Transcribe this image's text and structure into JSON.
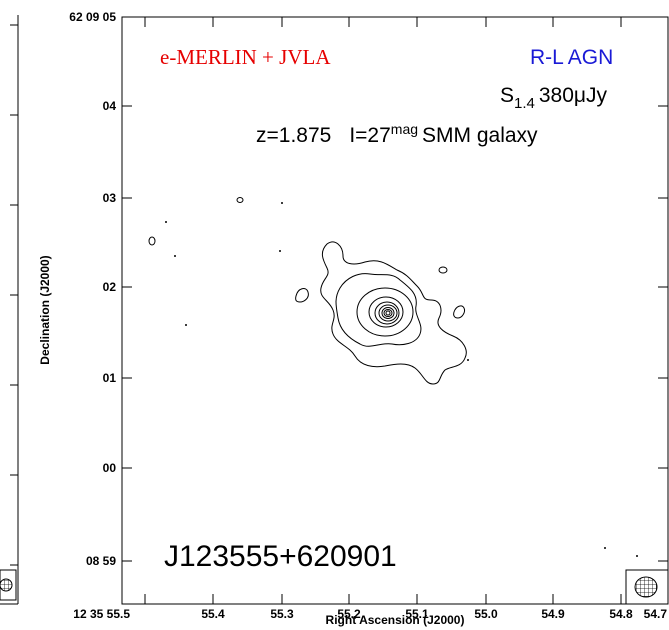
{
  "panel": {
    "title": "e-MERLIN + JVLA",
    "tag": "R-L AGN",
    "flux_symbol": "S",
    "flux_sub": "1.4",
    "flux_value": "380μJy",
    "redshift": "z=1.875",
    "mag_prefix": "I=27",
    "mag_sup": "mag",
    "mag_suffix": "SMM galaxy",
    "source": "J123555+620901",
    "x_axis": {
      "title": "Right Ascension (J2000)",
      "ticks": [
        "12 35 55.5",
        "55.4",
        "55.3",
        "55.2",
        "55.1",
        "55.0",
        "54.9",
        "54.8",
        "54.7"
      ]
    },
    "y_axis": {
      "title": "Declination (J2000)",
      "ticks": [
        "62 09 05",
        "04",
        "03",
        "02",
        "01",
        "00",
        "08 59"
      ]
    }
  }
}
